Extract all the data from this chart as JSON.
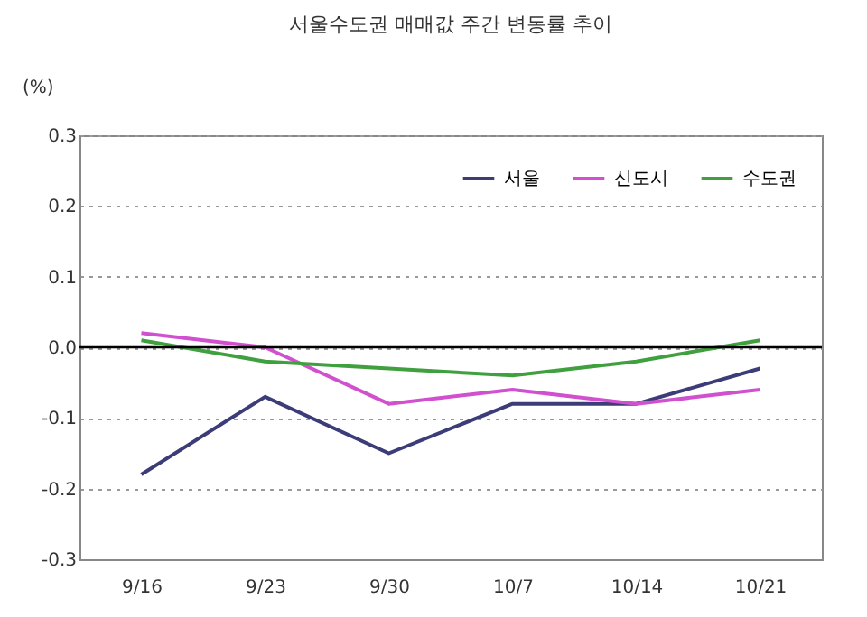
{
  "chart_data": {
    "type": "line",
    "title": "서울수도권 매매값 주간 변동률 추이",
    "ylabel": "(%)",
    "categories": [
      "9/16",
      "9/23",
      "9/30",
      "10/7",
      "10/14",
      "10/21"
    ],
    "series": [
      {
        "name": "서울",
        "color": "#3c3c78",
        "values": [
          -0.18,
          -0.07,
          -0.15,
          -0.08,
          -0.08,
          -0.03
        ]
      },
      {
        "name": "신도시",
        "color": "#d050d0",
        "values": [
          0.02,
          0.0,
          -0.08,
          -0.06,
          -0.08,
          -0.06
        ]
      },
      {
        "name": "수도권",
        "color": "#40a040",
        "values": [
          0.01,
          -0.02,
          -0.03,
          -0.04,
          -0.02,
          0.01
        ]
      }
    ],
    "ylim": [
      -0.3,
      0.3
    ],
    "yticks": [
      {
        "value": -0.3,
        "label": "-0.3"
      },
      {
        "value": -0.2,
        "label": "-0.2"
      },
      {
        "value": -0.1,
        "label": "-0.1"
      },
      {
        "value": 0,
        "label": "0.0"
      },
      {
        "value": 0.1,
        "label": "0.1"
      },
      {
        "value": 0.2,
        "label": "0.2"
      },
      {
        "value": 0.3,
        "label": "0.3"
      }
    ],
    "grid": "y",
    "legend": "top right",
    "line_style": "solid",
    "marker": "none",
    "ref_lines": [
      {
        "axis": "y",
        "value": 0,
        "color": "#000000"
      }
    ]
  }
}
